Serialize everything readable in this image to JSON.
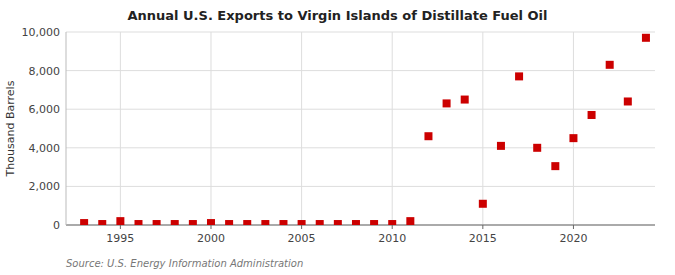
{
  "chart_data": {
    "type": "scatter",
    "title": "Annual U.S. Exports to Virgin Islands of Distillate Fuel Oil",
    "y_label": "Thousand Barrels",
    "source": "Source: U.S. Energy Information Administration",
    "x": [
      1993,
      1994,
      1995,
      1996,
      1997,
      1998,
      1999,
      2000,
      2001,
      2002,
      2003,
      2004,
      2005,
      2006,
      2007,
      2008,
      2009,
      2010,
      2011,
      2012,
      2013,
      2014,
      2015,
      2016,
      2017,
      2018,
      2019,
      2020,
      2021,
      2022,
      2023,
      2024
    ],
    "values": [
      100,
      50,
      200,
      50,
      50,
      50,
      50,
      100,
      50,
      50,
      50,
      50,
      50,
      50,
      50,
      50,
      50,
      50,
      200,
      4600,
      6300,
      6500,
      1100,
      4100,
      7700,
      4000,
      3050,
      4500,
      5700,
      8300,
      6400,
      9700
    ],
    "color": "#cc0000",
    "marker": "square",
    "xlim": [
      1992,
      2024.5
    ],
    "ylim": [
      0,
      10000
    ],
    "xticks": [
      1995,
      2000,
      2005,
      2010,
      2015,
      2020
    ],
    "yticks": [
      0,
      {
        "value": 2000,
        "label": "2,000"
      },
      {
        "value": 4000,
        "label": "4,000"
      },
      {
        "value": 6000,
        "label": "6,000"
      },
      {
        "value": 8000,
        "label": "8,000"
      },
      {
        "value": 10000,
        "label": "10,000"
      }
    ],
    "grid": true
  }
}
